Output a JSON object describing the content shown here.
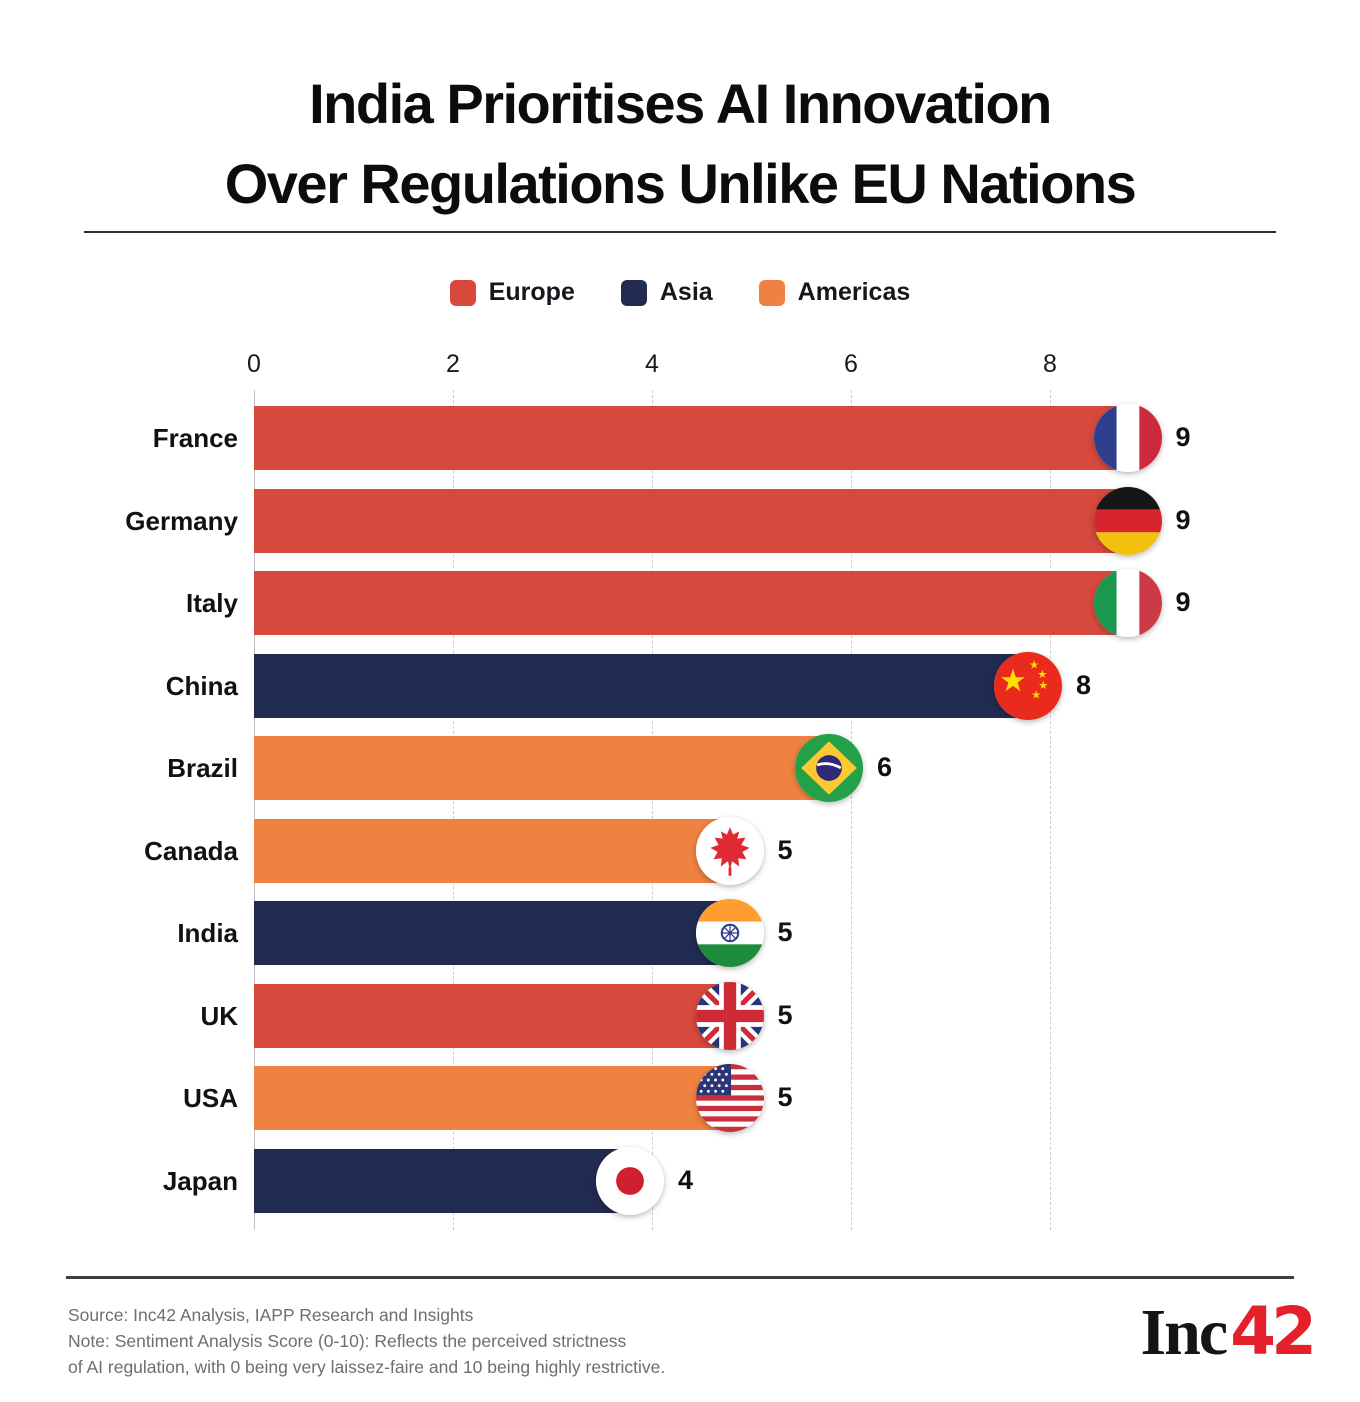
{
  "title": {
    "line1": "India Prioritises AI Innovation",
    "line2": "Over Regulations Unlike EU Nations"
  },
  "legend": {
    "items": [
      {
        "label": "Europe",
        "color": "#D6493C"
      },
      {
        "label": "Asia",
        "color": "#212B52"
      },
      {
        "label": "Americas",
        "color": "#EF8240"
      }
    ]
  },
  "chart_data": {
    "type": "bar",
    "orientation": "horizontal",
    "title": "India Prioritises AI Innovation Over Regulations Unlike EU Nations",
    "xlabel": "",
    "ylabel": "",
    "categories": [
      "France",
      "Germany",
      "Italy",
      "China",
      "Brazil",
      "Canada",
      "India",
      "UK",
      "USA",
      "Japan"
    ],
    "values": [
      9,
      9,
      9,
      8,
      6,
      5,
      5,
      5,
      5,
      4
    ],
    "regions": [
      "Europe",
      "Europe",
      "Europe",
      "Asia",
      "Americas",
      "Americas",
      "Asia",
      "Europe",
      "Americas",
      "Asia"
    ],
    "flags": [
      "france",
      "germany",
      "italy",
      "china",
      "brazil",
      "canada",
      "india",
      "uk",
      "usa",
      "japan"
    ],
    "region_colors": {
      "Europe": "#D6493C",
      "Asia": "#212B52",
      "Americas": "#EF8240"
    },
    "xticks": [
      0,
      2,
      4,
      6,
      8
    ],
    "xlim": [
      0,
      10
    ],
    "grid": "vertical-dashed",
    "legend_position": "top-center"
  },
  "footer": {
    "source": "Source: Inc42 Analysis, IAPP Research and Insights",
    "note_line1": "Note: Sentiment Analysis Score (0-10): Reflects the perceived strictness",
    "note_line2": "of AI regulation, with 0 being very laissez-faire and 10 being highly restrictive.",
    "logo": {
      "text_black": "Inc",
      "text_red": "42",
      "red_color": "#E5202B"
    }
  }
}
